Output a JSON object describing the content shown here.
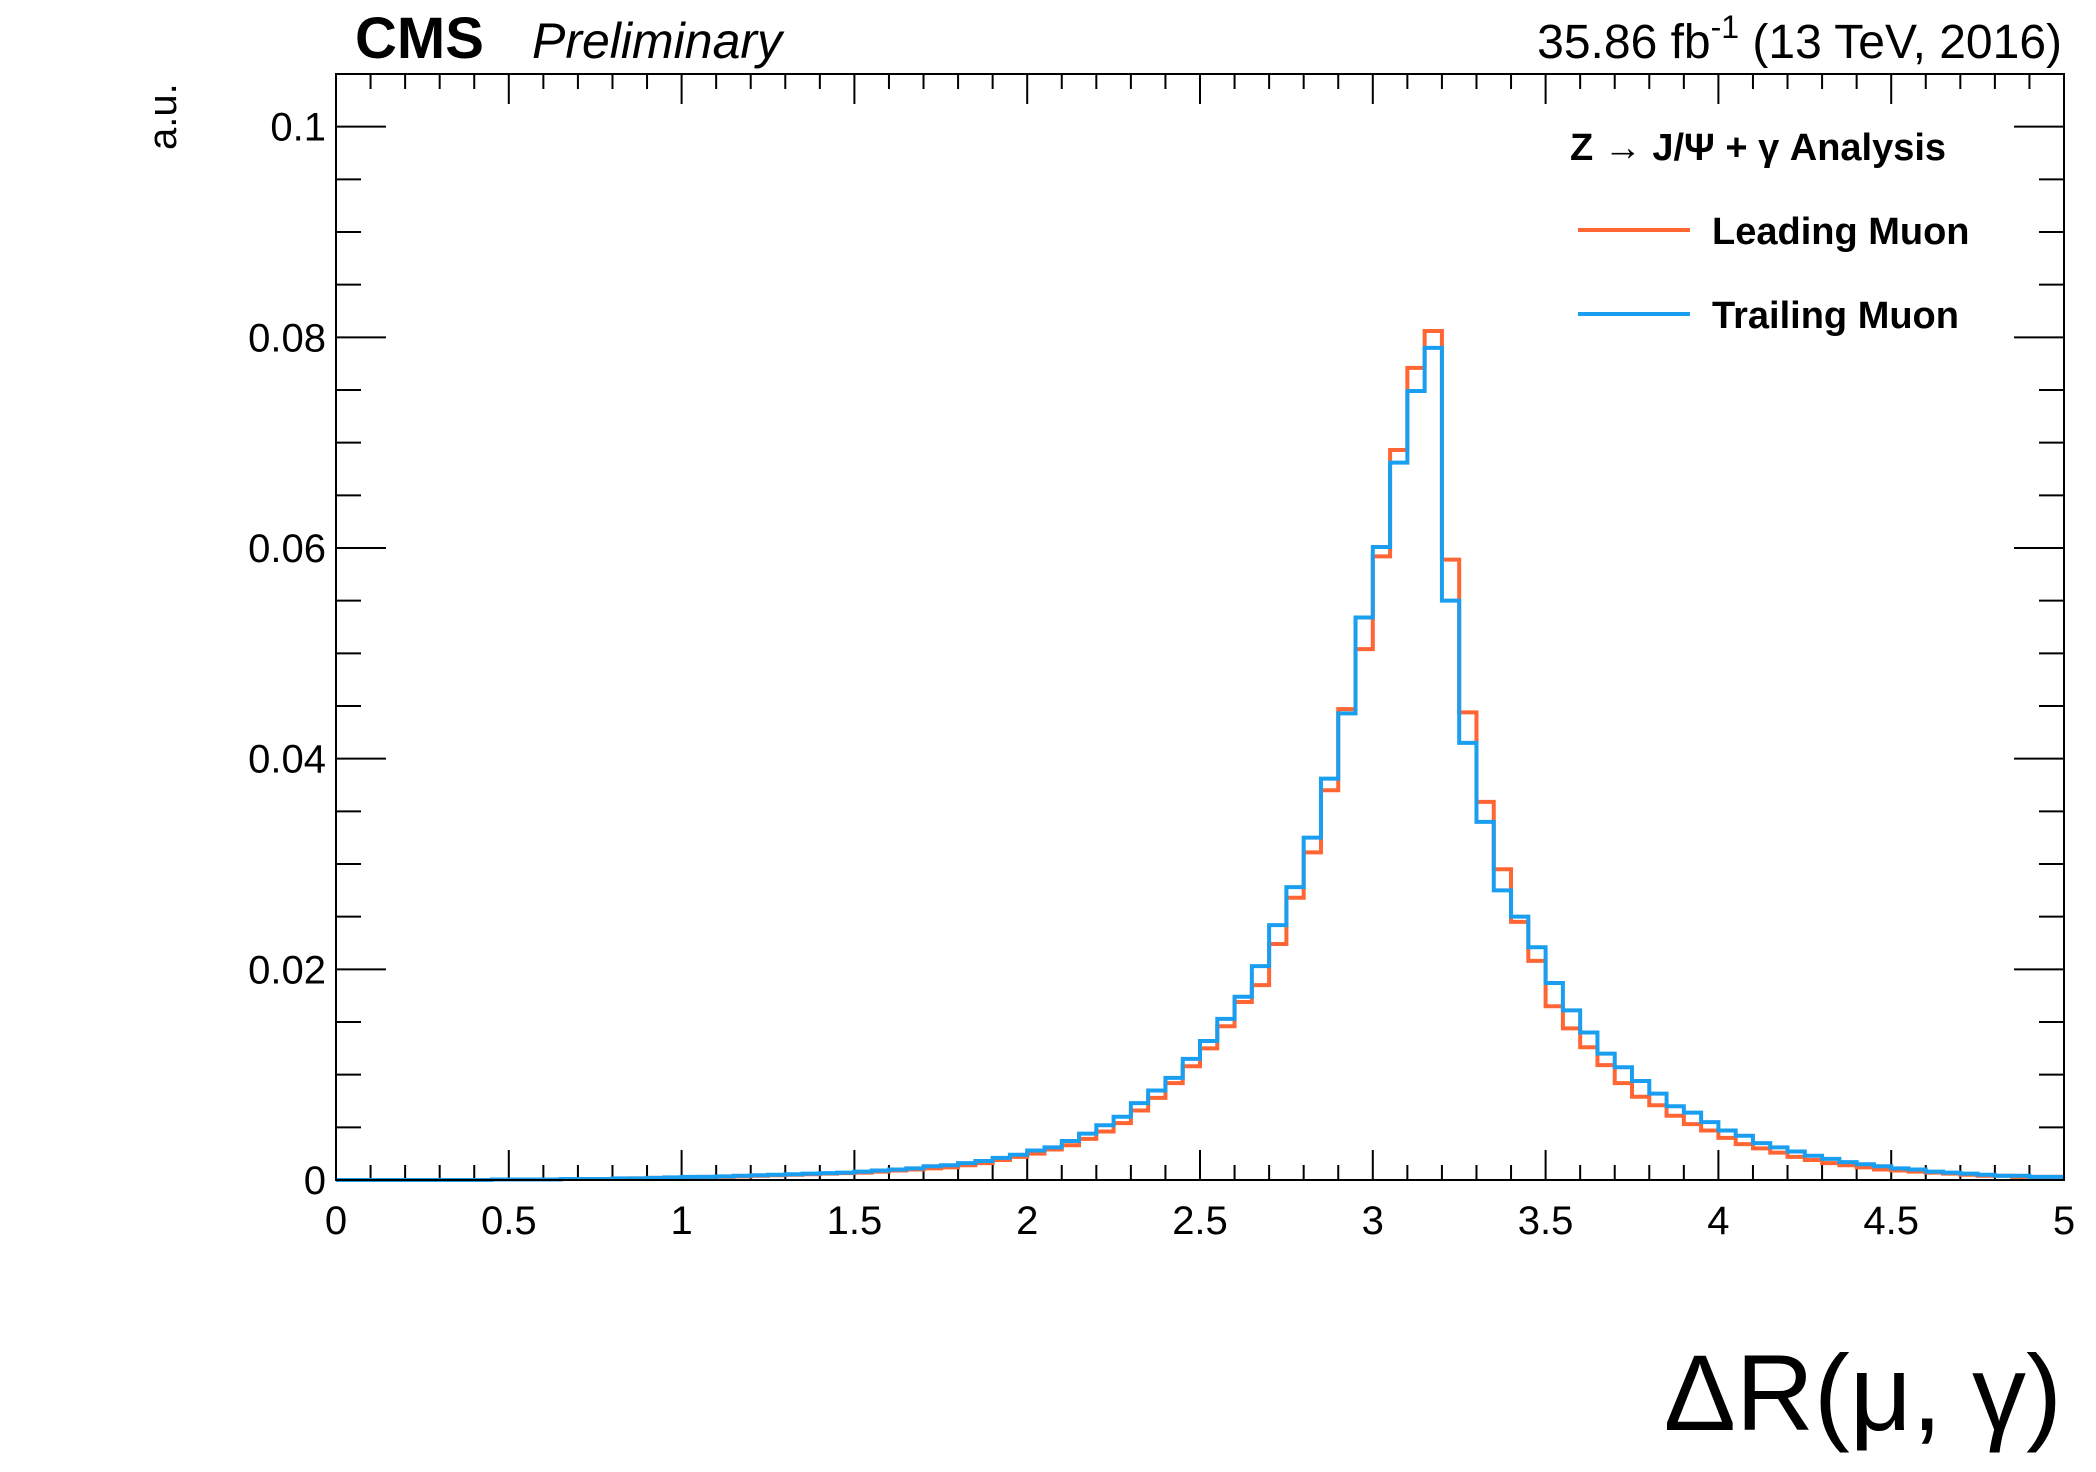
{
  "header": {
    "cms": "CMS",
    "preliminary": "Preliminary",
    "lumi": "35.86 fb",
    "lumi_sup": "-1",
    "energy": " (13 TeV, 2016)"
  },
  "chart_data": {
    "type": "line",
    "style": "step histogram",
    "title": "",
    "xlabel": "ΔR(μ, γ)",
    "ylabel": "a.u.",
    "xlim": [
      0,
      5
    ],
    "ylim": [
      0,
      0.105
    ],
    "grid": false,
    "legend_position": "top-right",
    "legend_title": "Z → J/Ψ + γ Analysis",
    "x_ticks": [
      "0",
      "0.5",
      "1",
      "1.5",
      "2",
      "2.5",
      "3",
      "3.5",
      "4",
      "4.5",
      "5"
    ],
    "y_ticks": [
      "0",
      "0.02",
      "0.04",
      "0.06",
      "0.08",
      "0.1"
    ],
    "bin_edges": [
      0,
      0.05,
      0.1,
      0.15,
      0.2,
      0.25,
      0.3,
      0.35,
      0.4,
      0.45,
      0.5,
      0.55,
      0.6,
      0.65,
      0.7,
      0.75,
      0.8,
      0.85,
      0.9,
      0.95,
      1.0,
      1.05,
      1.1,
      1.15,
      1.2,
      1.25,
      1.3,
      1.35,
      1.4,
      1.45,
      1.5,
      1.55,
      1.6,
      1.65,
      1.7,
      1.75,
      1.8,
      1.85,
      1.9,
      1.95,
      2.0,
      2.05,
      2.1,
      2.15,
      2.2,
      2.25,
      2.3,
      2.35,
      2.4,
      2.45,
      2.5,
      2.55,
      2.6,
      2.65,
      2.7,
      2.75,
      2.8,
      2.85,
      2.9,
      2.95,
      3.0,
      3.05,
      3.1,
      3.15,
      3.2,
      3.25,
      3.3,
      3.35,
      3.4,
      3.45,
      3.5,
      3.55,
      3.6,
      3.65,
      3.7,
      3.75,
      3.8,
      3.85,
      3.9,
      3.95,
      4.0,
      4.05,
      4.1,
      4.15,
      4.2,
      4.25,
      4.3,
      4.35,
      4.4,
      4.45,
      4.5,
      4.55,
      4.6,
      4.65,
      4.7,
      4.75,
      4.8,
      4.85,
      4.9,
      4.95,
      5.0
    ],
    "series": [
      {
        "name": "Leading Muon",
        "color": "#ff6633",
        "values": [
          0,
          0,
          0,
          0,
          0,
          0,
          0,
          0,
          0,
          5e-05,
          5e-05,
          5e-05,
          5e-05,
          0.0001,
          0.0001,
          0.0001,
          0.0001,
          0.00015,
          0.0002,
          0.0002,
          0.00025,
          0.0003,
          0.0003,
          0.00035,
          0.0004,
          0.00045,
          0.0005,
          0.00055,
          0.0006,
          0.00065,
          0.0007,
          0.0008,
          0.0009,
          0.001,
          0.0011,
          0.0012,
          0.0014,
          0.0016,
          0.0019,
          0.0022,
          0.0025,
          0.0029,
          0.0033,
          0.0039,
          0.0046,
          0.0054,
          0.0066,
          0.0078,
          0.0092,
          0.0108,
          0.0125,
          0.0146,
          0.0169,
          0.0185,
          0.0224,
          0.0268,
          0.0311,
          0.037,
          0.0447,
          0.0504,
          0.0592,
          0.0693,
          0.0771,
          0.0806,
          0.0589,
          0.0444,
          0.0359,
          0.0295,
          0.0245,
          0.0208,
          0.0165,
          0.0144,
          0.0126,
          0.0109,
          0.0092,
          0.0079,
          0.0071,
          0.0061,
          0.0053,
          0.0047,
          0.004,
          0.0034,
          0.003,
          0.0026,
          0.0022,
          0.0019,
          0.0016,
          0.0014,
          0.0012,
          0.001,
          0.0009,
          0.0008,
          0.0007,
          0.0006,
          0.0005,
          0.0004,
          0.0004,
          0.0003,
          0.0003,
          0.0003
        ]
      },
      {
        "name": "Trailing Muon",
        "color": "#1a9ef0",
        "values": [
          0,
          0,
          0,
          0,
          0,
          0,
          0,
          0,
          0,
          5e-05,
          5e-05,
          5e-05,
          5e-05,
          0.0001,
          0.0001,
          0.0001,
          0.00015,
          0.00015,
          0.0002,
          0.00025,
          0.0003,
          0.0003,
          0.00035,
          0.0004,
          0.00045,
          0.0005,
          0.00055,
          0.0006,
          0.00065,
          0.0007,
          0.0008,
          0.0009,
          0.001,
          0.0011,
          0.0013,
          0.0014,
          0.0016,
          0.0018,
          0.0021,
          0.0024,
          0.0028,
          0.0031,
          0.0037,
          0.0044,
          0.0052,
          0.006,
          0.0073,
          0.0085,
          0.0097,
          0.0115,
          0.0132,
          0.0153,
          0.0174,
          0.0203,
          0.0242,
          0.0278,
          0.0325,
          0.0381,
          0.0443,
          0.0534,
          0.0601,
          0.0681,
          0.0749,
          0.079,
          0.055,
          0.0415,
          0.034,
          0.0275,
          0.025,
          0.0221,
          0.0187,
          0.0161,
          0.014,
          0.012,
          0.0107,
          0.0094,
          0.0082,
          0.007,
          0.0064,
          0.0055,
          0.0047,
          0.0042,
          0.0035,
          0.0031,
          0.0027,
          0.0023,
          0.002,
          0.0017,
          0.0015,
          0.0013,
          0.0011,
          0.001,
          0.0008,
          0.0007,
          0.0006,
          0.0005,
          0.0004,
          0.0004,
          0.0003,
          0.0003
        ]
      }
    ]
  }
}
